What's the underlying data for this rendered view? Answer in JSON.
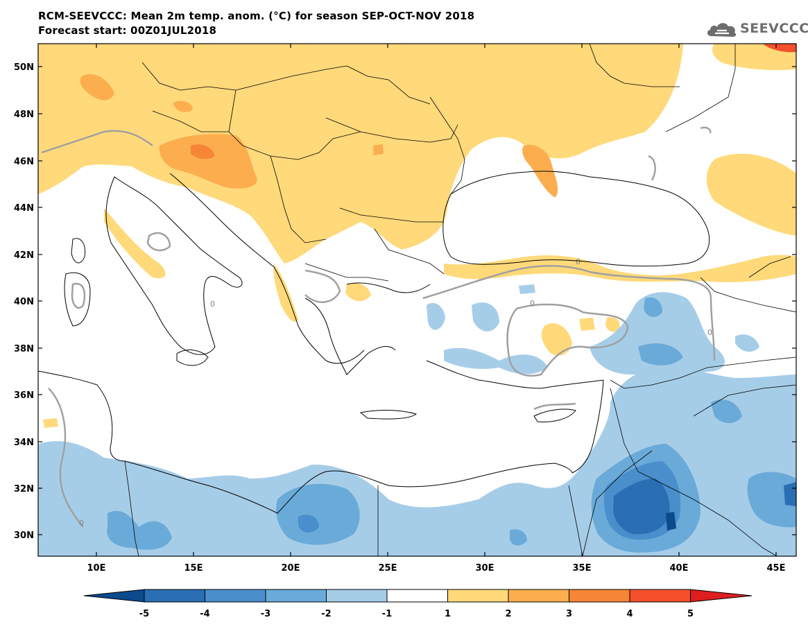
{
  "header": {
    "title_line1": "RCM-SEEVCCC: Mean 2m temp. anom. (°C) for season SEP-OCT-NOV 2018",
    "title_line2": "Forecast start: 00Z01JUL2018"
  },
  "logo": {
    "text": "SEEVCCC",
    "icon": "cloud-icon"
  },
  "map": {
    "lon_labels": [
      "10E",
      "15E",
      "20E",
      "25E",
      "30E",
      "35E",
      "40E",
      "45E"
    ],
    "lat_labels": [
      "50N",
      "48N",
      "46N",
      "44N",
      "42N",
      "40N",
      "38N",
      "36N",
      "34N",
      "32N",
      "30N"
    ],
    "contour_label": "0",
    "colors": {
      "frame": "#000000",
      "coast": "#000000",
      "zero_contour": "#a0a0a0"
    }
  },
  "colorbar": {
    "colors": [
      "#0b4a8c",
      "#2a6fb4",
      "#4a8fcc",
      "#6aaad9",
      "#a6cde8",
      "#ffffff",
      "#ffd97a",
      "#fcae4f",
      "#f78536",
      "#f3502b",
      "#dd1f1f"
    ],
    "tick_labels": [
      "-5",
      "-4",
      "-3",
      "-2",
      "-1",
      "1",
      "2",
      "3",
      "4",
      "5"
    ]
  }
}
